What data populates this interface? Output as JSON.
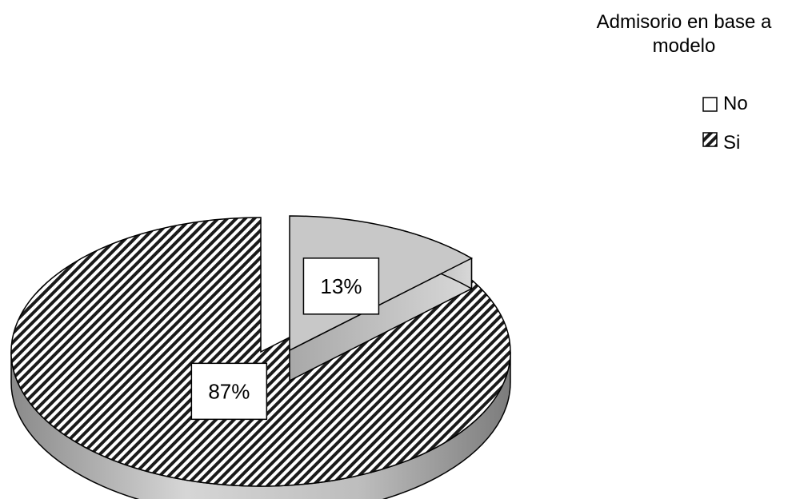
{
  "chart_data": {
    "type": "pie",
    "title": "",
    "legend_title": [
      "Admisorio en base a",
      "modelo"
    ],
    "legend_position": "top-right",
    "series": [
      {
        "name": "No",
        "value": 13,
        "label": "13%",
        "color": "#c8c8c8",
        "pattern": "none",
        "exploded": true
      },
      {
        "name": "Si",
        "value": 87,
        "label": "87%",
        "color": "#1a1a1a",
        "pattern": "diagonal-hatch",
        "exploded": false
      }
    ]
  }
}
